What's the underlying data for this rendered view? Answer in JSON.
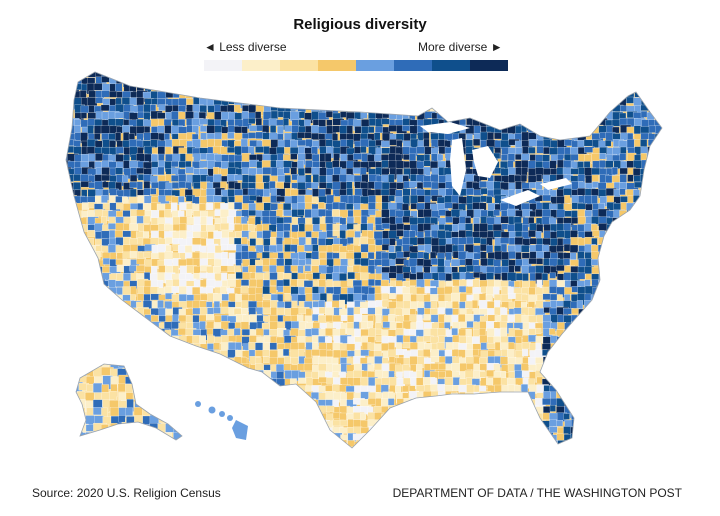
{
  "legend": {
    "title": "Religious diversity",
    "less_label": "◄ Less diverse",
    "more_label": "More diverse ►",
    "colors": [
      "#f3f3f7",
      "#fcefc9",
      "#fbe2a3",
      "#f5c86a",
      "#6a9fe0",
      "#2f6cb8",
      "#0f4f8c",
      "#0d2a57"
    ]
  },
  "footer": {
    "source": "Source: 2020 U.S. Religion Census",
    "credit": "DEPARTMENT OF DATA / THE WASHINGTON POST"
  },
  "regions": [
    {
      "name": "pacific-northwest",
      "level": 6
    },
    {
      "name": "northern-rockies",
      "level": 5
    },
    {
      "name": "great-basin",
      "level": 1
    },
    {
      "name": "california",
      "level": 3
    },
    {
      "name": "southwest",
      "level": 3
    },
    {
      "name": "great-plains",
      "level": 4
    },
    {
      "name": "midwest",
      "level": 6
    },
    {
      "name": "south",
      "level": 2
    },
    {
      "name": "northeast",
      "level": 5
    },
    {
      "name": "florida",
      "level": 5
    },
    {
      "name": "alaska",
      "level": 3
    },
    {
      "name": "hawaii",
      "level": 4
    }
  ]
}
